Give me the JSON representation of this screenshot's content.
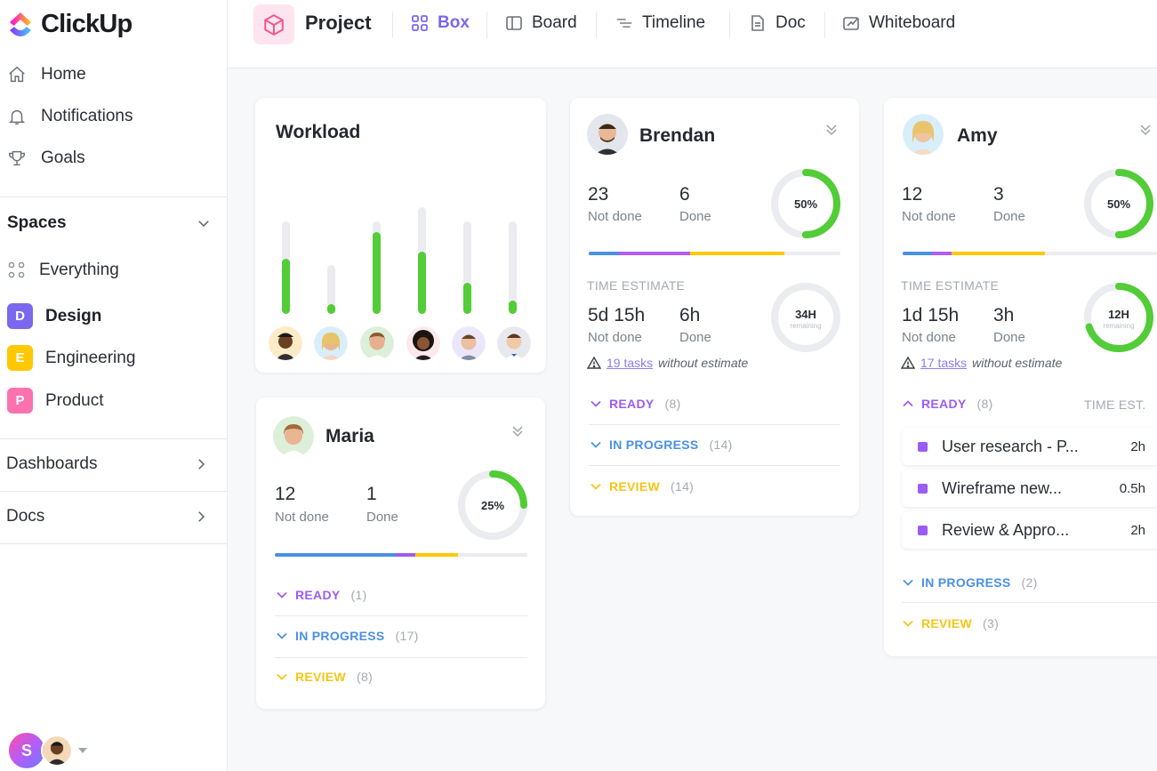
{
  "app": {
    "name": "ClickUp"
  },
  "sidebar": {
    "nav": [
      {
        "label": "Home",
        "icon": "home-icon"
      },
      {
        "label": "Notifications",
        "icon": "bell-icon"
      },
      {
        "label": "Goals",
        "icon": "trophy-icon"
      }
    ],
    "spaces_title": "Spaces",
    "everything_label": "Everything",
    "spaces": [
      {
        "letter": "D",
        "label": "Design",
        "color": "#7b68ee",
        "selected": true
      },
      {
        "letter": "E",
        "label": "Engineering",
        "color": "#ffc800"
      },
      {
        "letter": "P",
        "label": "Product",
        "color": "#fd71af"
      }
    ],
    "sections": [
      {
        "label": "Dashboards"
      },
      {
        "label": "Docs"
      }
    ],
    "user_initial": "S"
  },
  "header": {
    "project_title": "Project",
    "tabs": [
      {
        "label": "Box",
        "active": true
      },
      {
        "label": "Board"
      },
      {
        "label": "Timeline"
      },
      {
        "label": "Doc"
      },
      {
        "label": "Whiteboard"
      }
    ]
  },
  "workload": {
    "title": "Workload",
    "bars": [
      {
        "total": 0.78,
        "done": 0.6
      },
      {
        "total": 0.41,
        "done": 0.2
      },
      {
        "total": 0.78,
        "done": 0.88
      },
      {
        "total": 0.9,
        "done": 0.58
      },
      {
        "total": 0.78,
        "done": 0.34
      },
      {
        "total": 0.78,
        "done": 0.14
      }
    ]
  },
  "people": {
    "maria": {
      "name": "Maria",
      "not_done": "12",
      "not_done_label": "Not done",
      "done": "1",
      "done_label": "Done",
      "percent": "25%",
      "percent_value": 0.25,
      "statuses": [
        {
          "label": "READY",
          "count": "(1)",
          "color": "#9b5cf6"
        },
        {
          "label": "IN PROGRESS",
          "count": "(17)",
          "color": "#4a90e2"
        },
        {
          "label": "REVIEW",
          "count": "(8)",
          "color": "#f5c518"
        }
      ]
    },
    "brendan": {
      "name": "Brendan",
      "not_done": "23",
      "not_done_label": "Not done",
      "done": "6",
      "done_label": "Done",
      "percent": "50%",
      "percent_value": 0.5,
      "time_estimate_label": "TIME ESTIMATE",
      "est_not_done": "5d 15h",
      "est_done": "6h",
      "remaining": "34H",
      "remaining_label": "remaining",
      "remaining_value": 0,
      "tasks_link": "19 tasks",
      "tasks_suffix": "without estimate",
      "statuses": [
        {
          "label": "READY",
          "count": "(8)",
          "color": "#9b5cf6"
        },
        {
          "label": "IN PROGRESS",
          "count": "(14)",
          "color": "#4a90e2"
        },
        {
          "label": "REVIEW",
          "count": "(14)",
          "color": "#f5c518"
        }
      ]
    },
    "amy": {
      "name": "Amy",
      "not_done": "12",
      "not_done_label": "Not done",
      "done": "3",
      "done_label": "Done",
      "percent": "50%",
      "percent_value": 0.5,
      "time_estimate_label": "TIME ESTIMATE",
      "est_not_done": "1d 15h",
      "est_done": "3h",
      "remaining": "12H",
      "remaining_label": "remaining",
      "remaining_value": 0.7,
      "tasks_link": "17 tasks",
      "tasks_suffix": "without estimate",
      "ready_label": "READY",
      "ready_count": "(8)",
      "time_est_header": "TIME EST.",
      "tasks": [
        {
          "name": "User research - P...",
          "time": "2h"
        },
        {
          "name": "Wireframe new...",
          "time": "0.5h"
        },
        {
          "name": "Review & Appro...",
          "time": "2h"
        }
      ],
      "statuses": [
        {
          "label": "IN PROGRESS",
          "count": "(2)",
          "color": "#4a90e2"
        },
        {
          "label": "REVIEW",
          "count": "(3)",
          "color": "#f5c518"
        }
      ]
    }
  },
  "colors": {
    "accent": "#7b68ee",
    "green": "#52cc37",
    "blue": "#4a90e2",
    "purple": "#9b5cf6",
    "yellow": "#ffc800"
  }
}
